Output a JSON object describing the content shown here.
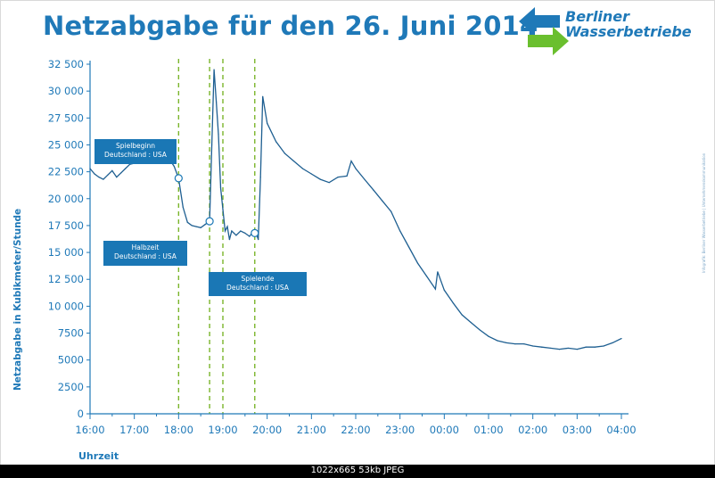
{
  "header": {
    "title": "Netzabgabe für den 26. Juni 2014"
  },
  "logo": {
    "line1": "Berliner",
    "line2": "Wasserbetriebe",
    "colors": {
      "blue": "#1f79b8",
      "green": "#6abf2e"
    }
  },
  "credit": "Infografik: Berliner Wasserbetriebe | Unternehmenskommunikation",
  "viewer_bar": {
    "text": "1022x665 53kb JPEG"
  },
  "colors": {
    "line": "#1e5f91",
    "axis": "#1f79b8",
    "marker": "#7ab52b",
    "callout": "#1a77b5"
  },
  "chart_data": {
    "type": "line",
    "xlabel": "Uhrzeit",
    "ylabel": "Netzabgabe in Kubikmeter/Stunde",
    "x_ticks": [
      "16:00",
      "17:00",
      "18:00",
      "19:00",
      "20:00",
      "21:00",
      "22:00",
      "23:00",
      "00:00",
      "01:00",
      "02:00",
      "03:00",
      "04:00"
    ],
    "x_range_hours": [
      16,
      28
    ],
    "y_ticks": [
      "0",
      "2500",
      "5000",
      "7500",
      "10 000",
      "12 500",
      "15 000",
      "17 500",
      "20 000",
      "22 500",
      "25 000",
      "27 500",
      "30 000",
      "32 500"
    ],
    "ylim": [
      0,
      32500
    ],
    "grid": false,
    "x_hours": [
      16.0,
      16.1,
      16.2,
      16.3,
      16.4,
      16.5,
      16.6,
      16.7,
      16.8,
      16.9,
      17.0,
      17.1,
      17.2,
      17.3,
      17.4,
      17.5,
      17.6,
      17.7,
      17.8,
      17.9,
      18.0,
      18.1,
      18.2,
      18.3,
      18.4,
      18.5,
      18.6,
      18.7,
      18.75,
      18.8,
      18.85,
      18.9,
      18.95,
      19.0,
      19.05,
      19.1,
      19.15,
      19.2,
      19.3,
      19.4,
      19.5,
      19.6,
      19.7,
      19.75,
      19.8,
      19.85,
      19.9,
      20.0,
      20.2,
      20.4,
      20.6,
      20.8,
      21.0,
      21.2,
      21.4,
      21.6,
      21.8,
      21.9,
      22.0,
      22.2,
      22.4,
      22.6,
      22.8,
      23.0,
      23.2,
      23.4,
      23.6,
      23.8,
      23.85,
      24.0,
      24.2,
      24.4,
      24.6,
      24.8,
      25.0,
      25.2,
      25.4,
      25.6,
      25.8,
      26.0,
      26.2,
      26.4,
      26.6,
      26.8,
      27.0,
      27.2,
      27.4,
      27.6,
      27.8,
      28.0
    ],
    "values": [
      22800,
      22300,
      22000,
      21800,
      22200,
      22600,
      22000,
      22400,
      22800,
      23200,
      23300,
      23700,
      23500,
      23500,
      23900,
      23700,
      23600,
      23800,
      23600,
      23000,
      21900,
      19200,
      17800,
      17500,
      17400,
      17300,
      17600,
      17900,
      25000,
      32000,
      29000,
      26000,
      21000,
      19000,
      17000,
      17400,
      16200,
      17000,
      16600,
      17000,
      16800,
      16500,
      17000,
      16800,
      16200,
      22000,
      29500,
      27000,
      25300,
      24200,
      23500,
      22800,
      22300,
      21800,
      21500,
      22000,
      22100,
      23500,
      22800,
      21800,
      20800,
      19800,
      18800,
      17000,
      15500,
      14000,
      12800,
      11600,
      13200,
      11500,
      10300,
      9200,
      8500,
      7800,
      7200,
      6800,
      6600,
      6500,
      6500,
      6300,
      6200,
      6100,
      6000,
      6100,
      6000,
      6200,
      6200,
      6300,
      6600,
      7000
    ],
    "marker_lines_hours": [
      18.0,
      18.7,
      19.0,
      19.72
    ],
    "annotations": [
      {
        "line1": "Spielbeginn",
        "line2": "Deutschland : USA"
      },
      {
        "line1": "Halbzeit",
        "line2": "Deutschland : USA"
      },
      {
        "line1": "Spielende",
        "line2": "Deutschland : USA"
      }
    ]
  }
}
